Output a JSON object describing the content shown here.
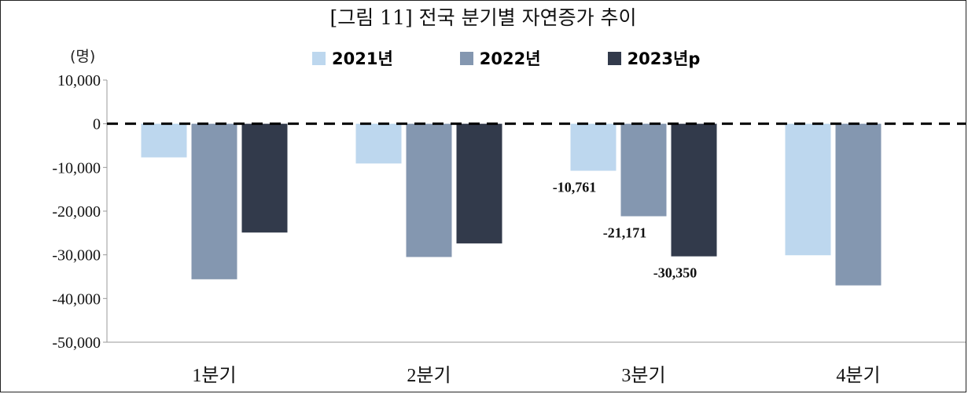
{
  "chart_data": {
    "type": "bar",
    "title": "[그림 11] 전국 분기별 자연증가 추이",
    "unit_label": "(명)",
    "categories": [
      "1분기",
      "2분기",
      "3분기",
      "4분기"
    ],
    "series": [
      {
        "name": "2021년",
        "color": "#bdd7ee",
        "values": [
          -7700,
          -9100,
          -10761,
          -30100
        ]
      },
      {
        "name": "2022년",
        "color": "#8497b0",
        "values": [
          -35600,
          -30500,
          -21171,
          -37000
        ]
      },
      {
        "name": "2023년p",
        "color": "#323a4b",
        "values": [
          -24900,
          -27400,
          -30350,
          null
        ]
      }
    ],
    "data_labels": [
      {
        "series": 0,
        "category": 2,
        "text": "-10,761"
      },
      {
        "series": 1,
        "category": 2,
        "text": "-21,171"
      },
      {
        "series": 2,
        "category": 2,
        "text": "-30,350"
      }
    ],
    "ylim": [
      -50000,
      10000
    ],
    "yticks": [
      10000,
      0,
      -10000,
      -20000,
      -30000,
      -40000,
      -50000
    ],
    "ytick_labels": [
      "10,000",
      "0",
      "-10,000",
      "-20,000",
      "-30,000",
      "-40,000",
      "-50,000"
    ],
    "zero_line": "dashed",
    "grid": false,
    "legend_position": "top"
  }
}
